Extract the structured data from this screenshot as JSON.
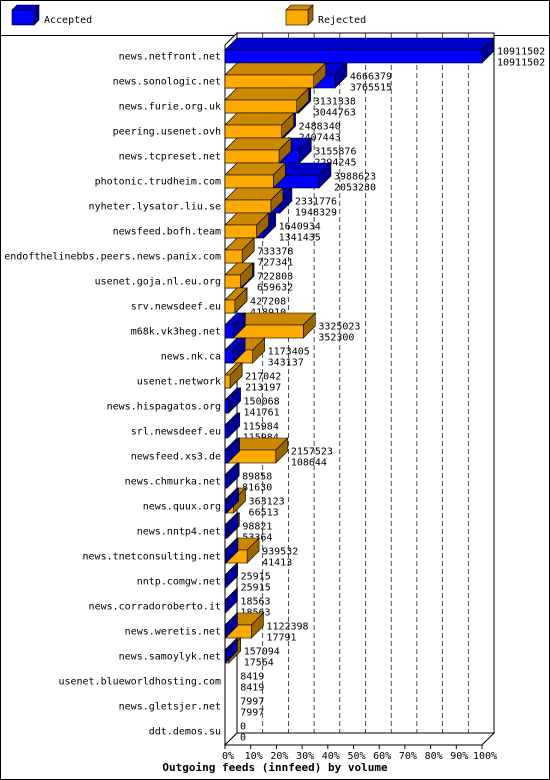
{
  "chart_data": {
    "type": "bar",
    "orientation": "horizontal",
    "style": "3d",
    "title": "Outgoing feeds (innfeed) by volume",
    "legend_position": "top",
    "grid": true,
    "xlim": [
      0,
      100
    ],
    "x_unit": "%",
    "x_ticks": [
      "0%",
      "10%",
      "20%",
      "30%",
      "40%",
      "50%",
      "60%",
      "70%",
      "80%",
      "90%",
      "100%"
    ],
    "colors": {
      "accepted": "#0000ff",
      "rejected": "#ffaa00"
    },
    "series": [
      {
        "name": "Accepted",
        "key": "accepted"
      },
      {
        "name": "Rejected",
        "key": "rejected"
      }
    ],
    "rows": [
      {
        "label": "news.netfront.net",
        "a": "10911502",
        "b": "10911502",
        "accepted": 10911502,
        "rejected": 0
      },
      {
        "label": "news.sonologic.net",
        "a": "4666379",
        "b": "3765515",
        "accepted": 4666379,
        "rejected": 3765515
      },
      {
        "label": "news.furie.org.uk",
        "a": "3131338",
        "b": "3044763",
        "accepted": 3131338,
        "rejected": 3044763
      },
      {
        "label": "peering.usenet.ovh",
        "a": "2488340",
        "b": "2407443",
        "accepted": 2488340,
        "rejected": 2407443
      },
      {
        "label": "news.tcpreset.net",
        "a": "3155876",
        "b": "2294245",
        "accepted": 3155876,
        "rejected": 2294245
      },
      {
        "label": "photonic.trudheim.com",
        "a": "3988623",
        "b": "2053230",
        "accepted": 3988623,
        "rejected": 2053230
      },
      {
        "label": "nyheter.lysator.liu.se",
        "a": "2331776",
        "b": "1948329",
        "accepted": 2331776,
        "rejected": 1948329
      },
      {
        "label": "newsfeed.bofh.team",
        "a": "1640934",
        "b": "1341435",
        "accepted": 1640934,
        "rejected": 1341435
      },
      {
        "label": "endofthelinebbs.peers.news.panix.com",
        "a": "733378",
        "b": "727341",
        "accepted": 733378,
        "rejected": 727341
      },
      {
        "label": "usenet.goja.nl.eu.org",
        "a": "722803",
        "b": "659632",
        "accepted": 722803,
        "rejected": 659632
      },
      {
        "label": "srv.newsdeef.eu",
        "a": "427208",
        "b": "418910",
        "accepted": 427208,
        "rejected": 418910
      },
      {
        "label": "m68k.vk3heg.net",
        "a": "3325023",
        "b": "352300",
        "accepted": 352300,
        "rejected": 3325023
      },
      {
        "label": "news.nk.ca",
        "a": "1173405",
        "b": "343137",
        "accepted": 343137,
        "rejected": 1173405
      },
      {
        "label": "usenet.network",
        "a": "217042",
        "b": "213197",
        "accepted": 217042,
        "rejected": 213197
      },
      {
        "label": "news.hispagatos.org",
        "a": "150068",
        "b": "141761",
        "accepted": 141761,
        "rejected": 150068
      },
      {
        "label": "srl.newsdeef.eu",
        "a": "115984",
        "b": "115984",
        "accepted": 115984,
        "rejected": 0
      },
      {
        "label": "newsfeed.xs3.de",
        "a": "2157523",
        "b": "108644",
        "accepted": 108644,
        "rejected": 2157523
      },
      {
        "label": "news.chmurka.net",
        "a": "89858",
        "b": "81630",
        "accepted": 81630,
        "rejected": 89858
      },
      {
        "label": "news.quux.org",
        "a": "363123",
        "b": "66513",
        "accepted": 66513,
        "rejected": 363123
      },
      {
        "label": "news.nntp4.net",
        "a": "98821",
        "b": "53364",
        "accepted": 53364,
        "rejected": 98821
      },
      {
        "label": "news.tnetconsulting.net",
        "a": "939532",
        "b": "41413",
        "accepted": 41413,
        "rejected": 939532
      },
      {
        "label": "nntp.comgw.net",
        "a": "25915",
        "b": "25915",
        "accepted": 25915,
        "rejected": 0
      },
      {
        "label": "news.corradoroberto.it",
        "a": "18563",
        "b": "18563",
        "accepted": 18563,
        "rejected": 0
      },
      {
        "label": "news.weretis.net",
        "a": "1122398",
        "b": "17791",
        "accepted": 17791,
        "rejected": 1122398
      },
      {
        "label": "news.samoylyk.net",
        "a": "157094",
        "b": "17564",
        "accepted": 17564,
        "rejected": 157094
      },
      {
        "label": "usenet.blueworldhosting.com",
        "a": "8419",
        "b": "8419",
        "accepted": 8419,
        "rejected": 0
      },
      {
        "label": "news.gletsjer.net",
        "a": "7997",
        "b": "7997",
        "accepted": 7997,
        "rejected": 0
      },
      {
        "label": "ddt.demos.su",
        "a": "0",
        "b": "0",
        "accepted": 0,
        "rejected": 0
      }
    ]
  }
}
